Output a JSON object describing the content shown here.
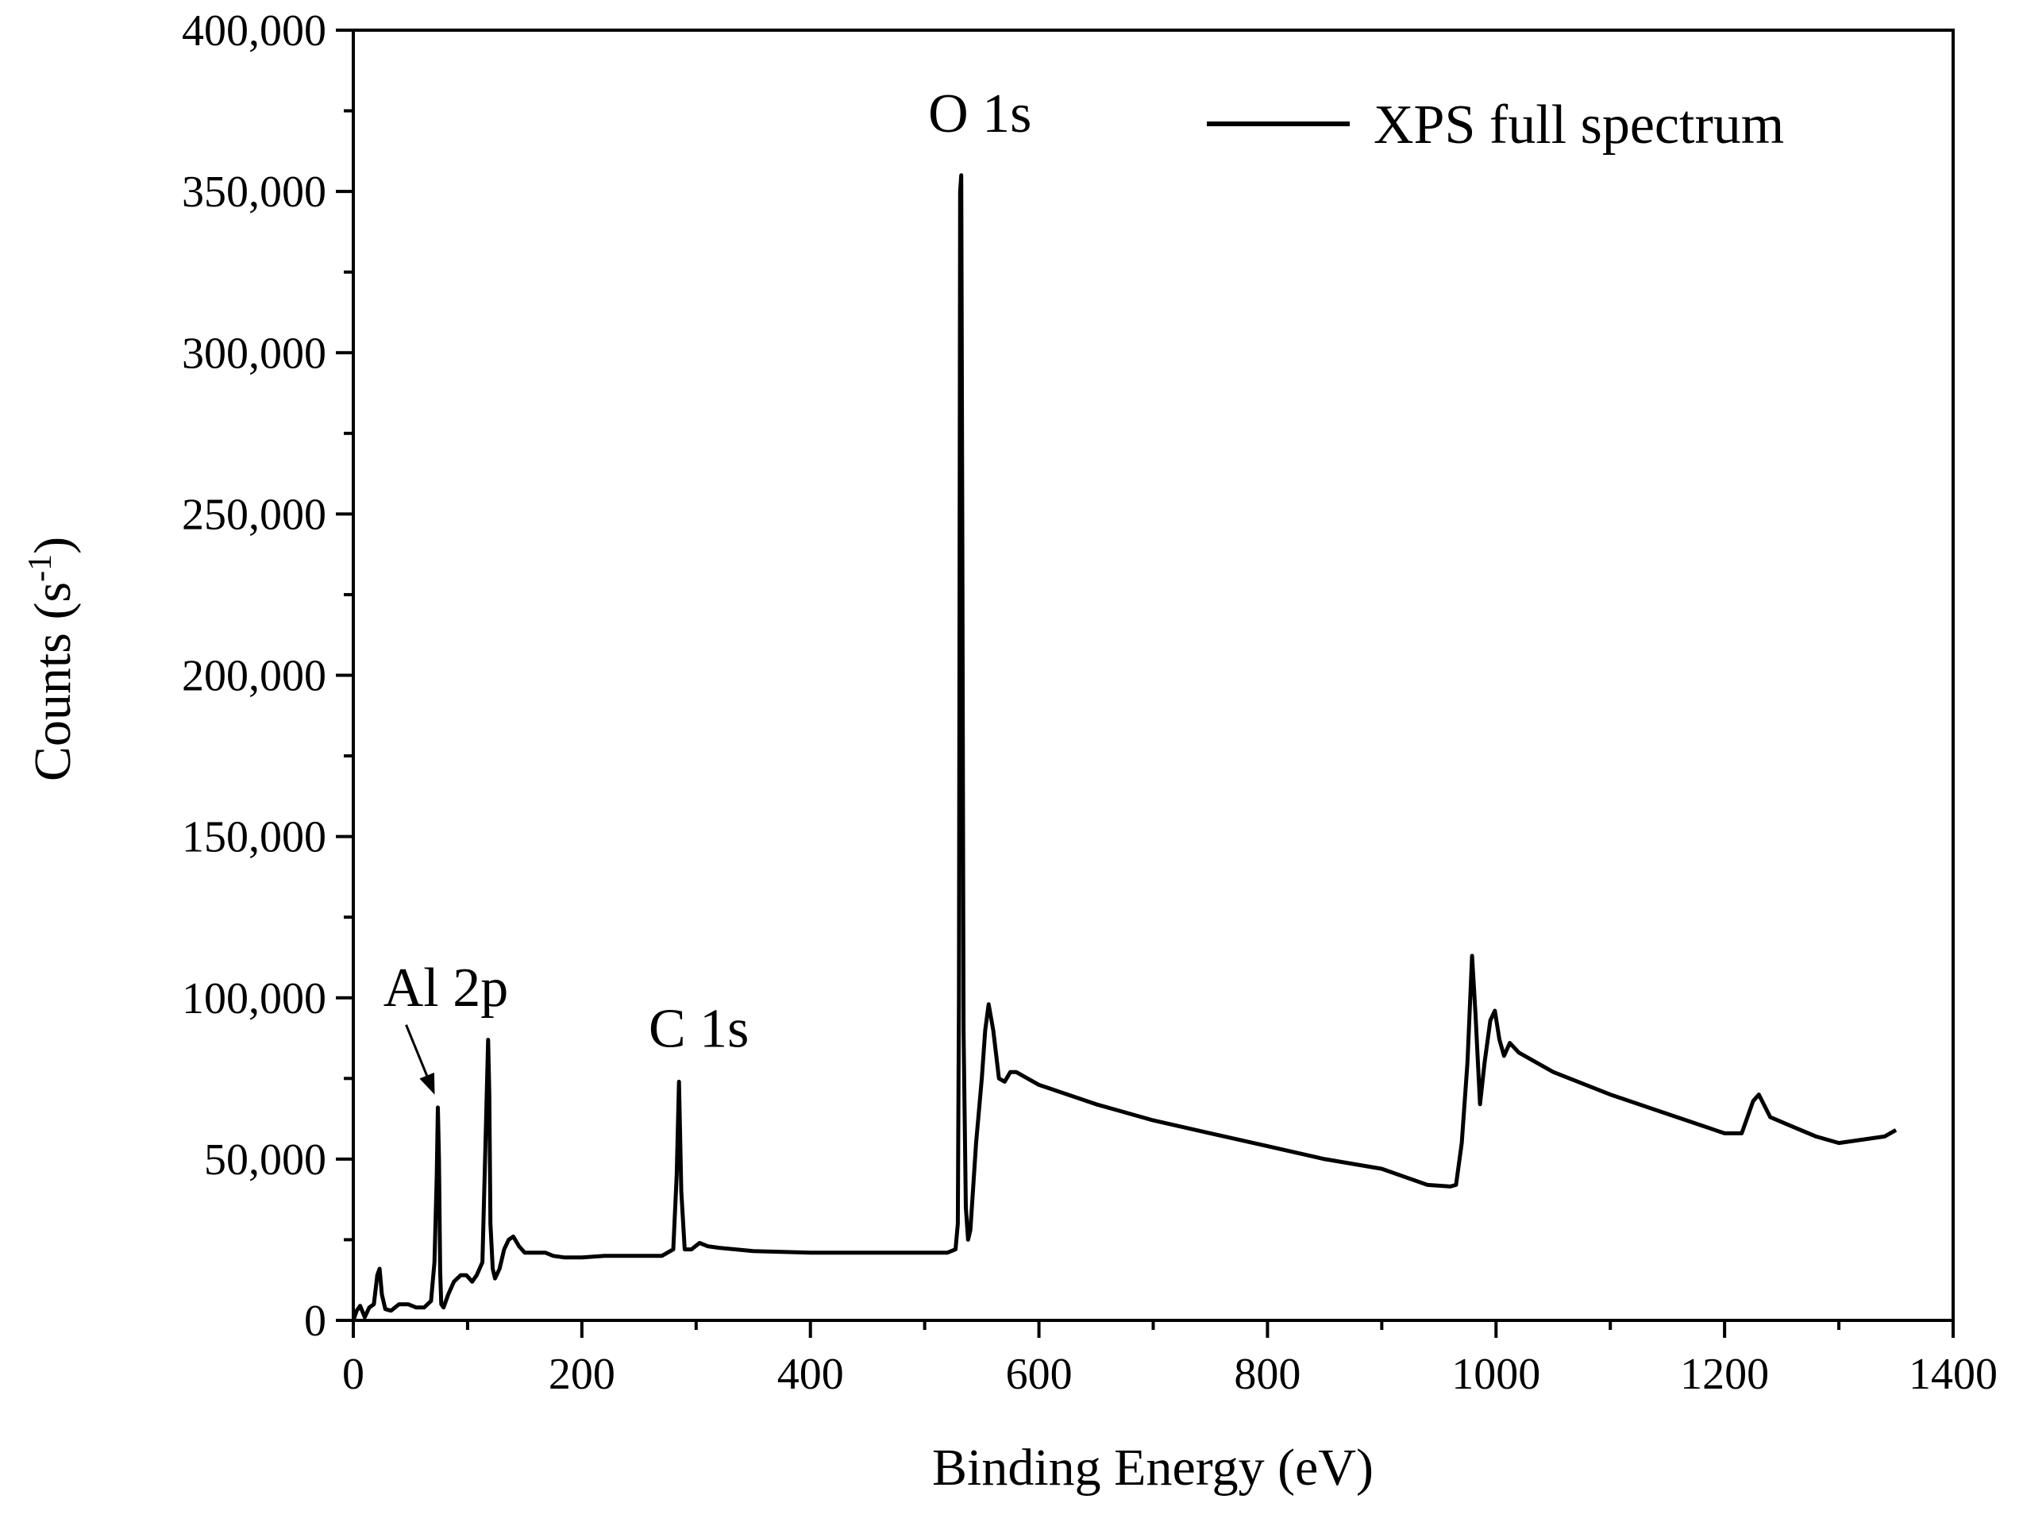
{
  "chart_data": {
    "type": "line",
    "title": "",
    "xlabel": "Binding Energy (eV)",
    "ylabel_main": "Counts (s",
    "ylabel_sup": "-1",
    "ylabel_close": ")",
    "xlim": [
      0,
      1400
    ],
    "ylim": [
      0,
      400000
    ],
    "x_ticks": [
      0,
      200,
      400,
      600,
      800,
      1000,
      1200,
      1400
    ],
    "x_tick_labels": [
      "0",
      "200",
      "400",
      "600",
      "800",
      "1000",
      "1200",
      "1400"
    ],
    "y_ticks": [
      0,
      50000,
      100000,
      150000,
      200000,
      250000,
      300000,
      350000,
      400000
    ],
    "y_tick_labels": [
      "0",
      "50,000",
      "100,000",
      "150,000",
      "200,000",
      "250,000",
      "300,000",
      "350,000",
      "400,000"
    ],
    "grid": false,
    "legend": {
      "position": "top-right",
      "entries": [
        "XPS full spectrum"
      ]
    },
    "annotations": [
      {
        "text": "O 1s",
        "x": 531,
        "y": 355000
      },
      {
        "text": "C 1s",
        "x": 285,
        "y": 75000
      },
      {
        "text": "Al 2p",
        "x": 74,
        "y": 68000
      }
    ],
    "series": [
      {
        "name": "XPS full spectrum",
        "x": [
          0,
          3,
          6,
          10,
          14,
          18,
          21,
          23,
          25,
          28,
          33,
          40,
          48,
          55,
          62,
          68,
          71,
          73,
          74,
          75,
          76,
          77,
          79,
          83,
          88,
          94,
          99,
          104,
          108,
          113,
          116,
          118,
          119,
          120,
          122,
          124,
          128,
          132,
          136,
          140,
          145,
          150,
          160,
          168,
          175,
          185,
          200,
          220,
          250,
          270,
          280,
          283,
          285,
          287,
          290,
          296,
          303,
          310,
          320,
          350,
          400,
          450,
          500,
          520,
          527,
          529,
          530,
          531,
          532,
          533,
          534,
          536,
          538,
          540,
          545,
          550,
          553,
          556,
          560,
          565,
          570,
          575,
          580,
          590,
          600,
          650,
          700,
          750,
          800,
          850,
          900,
          940,
          960,
          965,
          970,
          975,
          979,
          982,
          986,
          990,
          995,
          999,
          1003,
          1007,
          1012,
          1020,
          1050,
          1100,
          1150,
          1200,
          1215,
          1225,
          1230,
          1240,
          1260,
          1280,
          1300,
          1320,
          1340,
          1350
        ],
        "values": [
          0,
          3000,
          4500,
          1000,
          4000,
          5000,
          14000,
          16000,
          8000,
          3500,
          3000,
          5000,
          5000,
          4000,
          4000,
          6000,
          18000,
          45000,
          66000,
          50000,
          15000,
          5000,
          4000,
          8000,
          12000,
          14000,
          14000,
          12000,
          14000,
          18000,
          60000,
          87000,
          70000,
          30000,
          16000,
          13000,
          16000,
          22000,
          25000,
          26000,
          23000,
          21000,
          21000,
          21000,
          20000,
          19500,
          19500,
          20000,
          20000,
          20000,
          22000,
          45000,
          74000,
          40000,
          22000,
          22000,
          24000,
          23000,
          22500,
          21500,
          21000,
          21000,
          21000,
          21000,
          22000,
          30000,
          100000,
          350000,
          355000,
          240000,
          90000,
          35000,
          25000,
          28000,
          55000,
          75000,
          90000,
          98000,
          90000,
          75000,
          74000,
          77000,
          77000,
          75000,
          73000,
          67000,
          62000,
          58000,
          54000,
          50000,
          47000,
          42000,
          41500,
          42000,
          55000,
          80000,
          113000,
          95000,
          67000,
          80000,
          93000,
          96000,
          87000,
          82000,
          86000,
          83000,
          77000,
          70000,
          64000,
          58000,
          58000,
          68000,
          70000,
          63000,
          60000,
          57000,
          55000,
          56000,
          57000,
          59000
        ]
      }
    ]
  }
}
